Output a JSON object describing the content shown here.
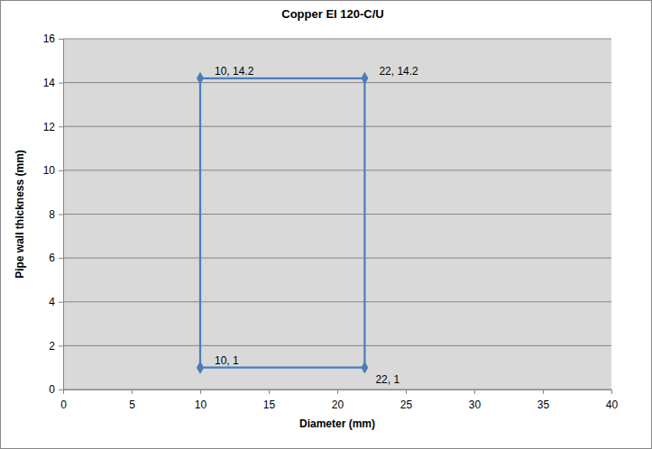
{
  "chart_data": {
    "type": "line",
    "title": "Copper EI 120-C/U",
    "x_label": "Diameter (mm)",
    "y_label": "Pipe wall thickness (mm)",
    "x": [
      10,
      10,
      22,
      22,
      10
    ],
    "values": [
      1,
      14.2,
      14.2,
      1,
      1
    ],
    "color": "#4a7ebb",
    "marker": "diamond",
    "line_style": "solid",
    "xlim": [
      0,
      40
    ],
    "xticks": [
      0,
      5,
      10,
      15,
      20,
      25,
      30,
      35,
      40
    ],
    "ylim": [
      0,
      16
    ],
    "yticks": [
      0,
      2,
      4,
      6,
      8,
      10,
      12,
      14,
      16
    ],
    "grid": true,
    "annotations": [
      {
        "text": "10, 14.2",
        "x": 10,
        "y": 14.2
      },
      {
        "text": "22, 14.2",
        "x": 22,
        "y": 14.2
      },
      {
        "text": "10, 1",
        "x": 10,
        "y": 1
      },
      {
        "text": "22, 1",
        "x": 22,
        "y": 1
      }
    ]
  }
}
